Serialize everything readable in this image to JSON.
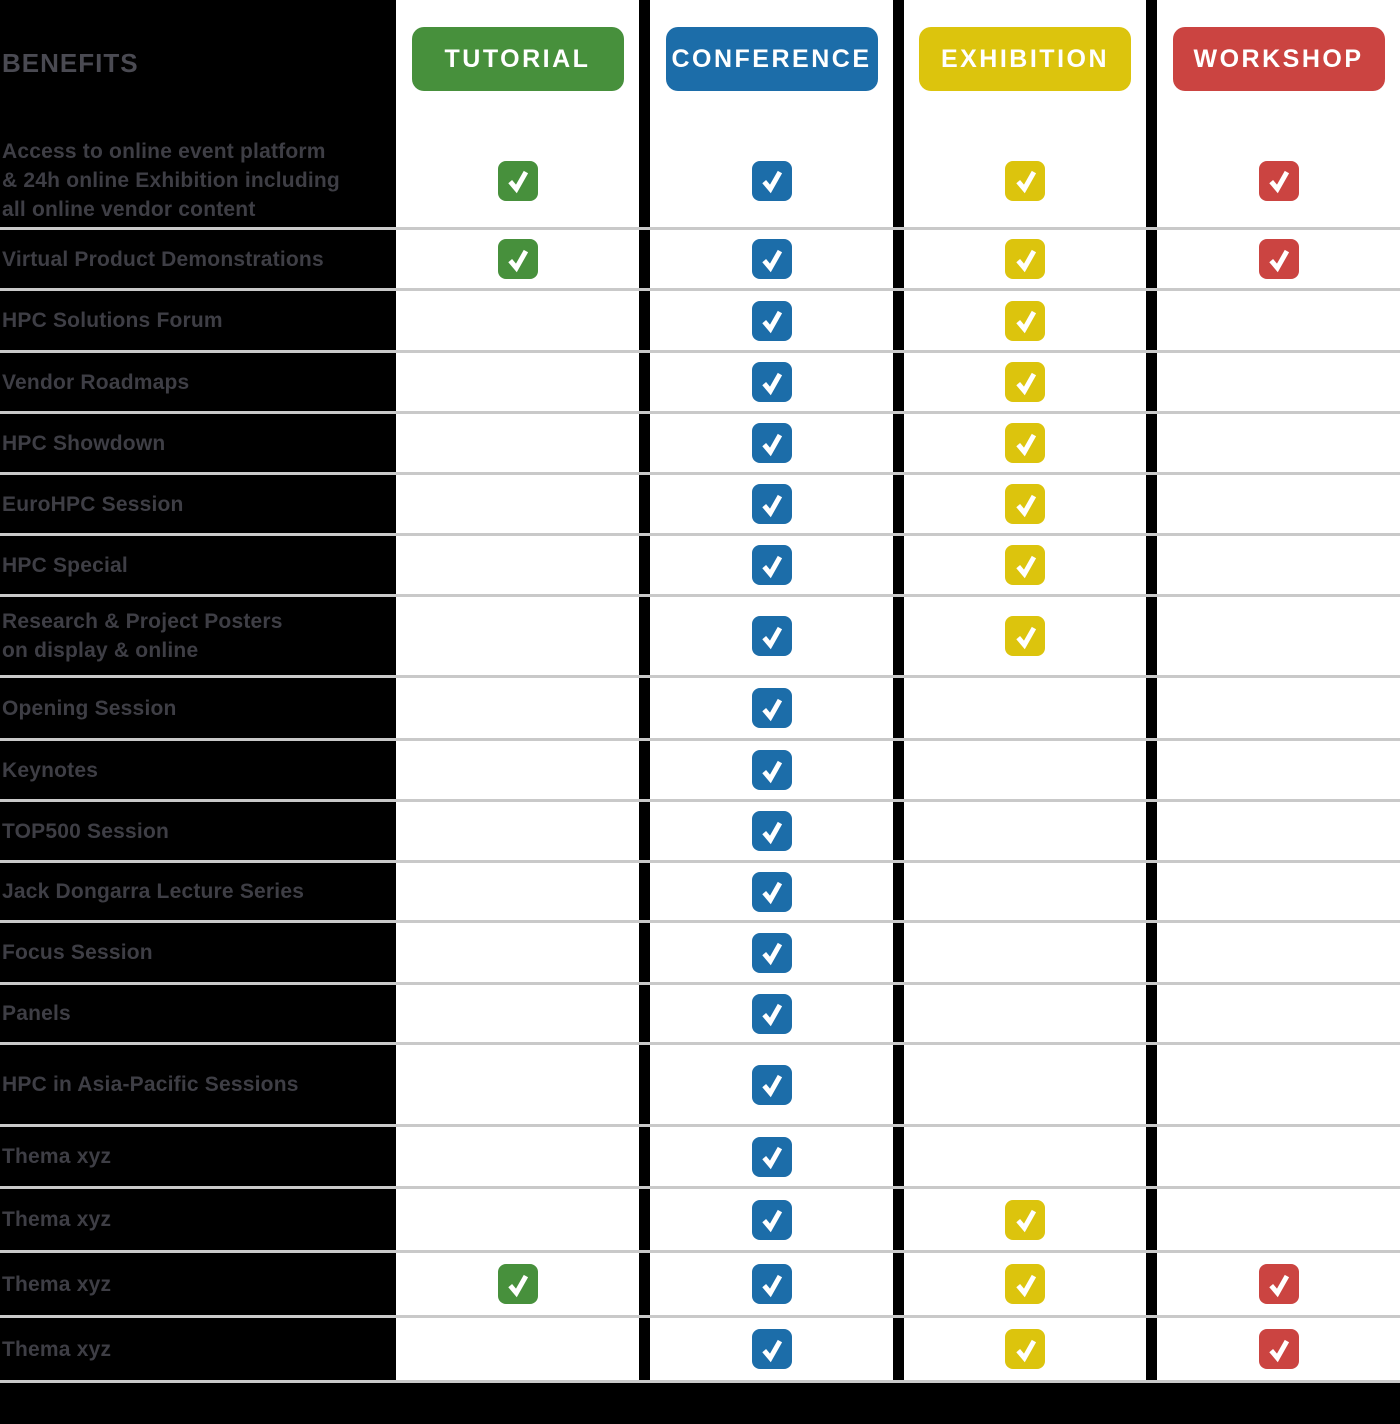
{
  "chart_data": {
    "type": "table",
    "title": "BENEFITS",
    "legend_position": "top",
    "columns": [
      {
        "id": "tutorial",
        "label": "TUTORIAL",
        "color": "#47903c"
      },
      {
        "id": "conference",
        "label": "CONFERENCE",
        "color": "#1c6da9"
      },
      {
        "id": "exhibition",
        "label": "EXHIBITION",
        "color": "#dcc40d"
      },
      {
        "id": "workshop",
        "label": "WORKSHOP",
        "color": "#cb4441"
      }
    ],
    "rows": [
      {
        "label": "Access to online event platform\n& 24h online Exhibition including\nall online vendor content",
        "checks": [
          true,
          true,
          true,
          true
        ]
      },
      {
        "label": "Virtual Product Demonstrations",
        "checks": [
          true,
          true,
          true,
          true
        ]
      },
      {
        "label": "HPC Solutions Forum",
        "checks": [
          false,
          true,
          true,
          false
        ]
      },
      {
        "label": "Vendor Roadmaps",
        "checks": [
          false,
          true,
          true,
          false
        ]
      },
      {
        "label": "HPC Showdown",
        "checks": [
          false,
          true,
          true,
          false
        ]
      },
      {
        "label": "EuroHPC Session",
        "checks": [
          false,
          true,
          true,
          false
        ]
      },
      {
        "label": "HPC Special",
        "checks": [
          false,
          true,
          true,
          false
        ]
      },
      {
        "label": "Research & Project Posters\non display & online",
        "checks": [
          false,
          true,
          true,
          false
        ]
      },
      {
        "label": "Opening Session",
        "checks": [
          false,
          true,
          false,
          false
        ]
      },
      {
        "label": "Keynotes",
        "checks": [
          false,
          true,
          false,
          false
        ]
      },
      {
        "label": "TOP500 Session",
        "checks": [
          false,
          true,
          false,
          false
        ]
      },
      {
        "label": "Jack Dongarra Lecture Series",
        "checks": [
          false,
          true,
          false,
          false
        ]
      },
      {
        "label": "Focus Session",
        "checks": [
          false,
          true,
          false,
          false
        ]
      },
      {
        "label": "Panels",
        "checks": [
          false,
          true,
          false,
          false
        ]
      },
      {
        "label": "HPC in Asia-Pacific Sessions",
        "checks": [
          false,
          true,
          false,
          false
        ]
      },
      {
        "label": "Thema xyz",
        "checks": [
          false,
          true,
          false,
          false
        ]
      },
      {
        "label": "Thema xyz",
        "checks": [
          false,
          true,
          true,
          false
        ]
      },
      {
        "label": "Thema xyz",
        "checks": [
          true,
          true,
          true,
          true
        ]
      },
      {
        "label": "Thema xyz",
        "checks": [
          false,
          true,
          true,
          true
        ]
      }
    ]
  },
  "style": {
    "background": "#000000",
    "separator_line_color": "#c9c9c9",
    "benefit_label_color": "#3e3e45",
    "heading_color": "#4a4a52",
    "check_glyph_color": "#ffffff"
  }
}
